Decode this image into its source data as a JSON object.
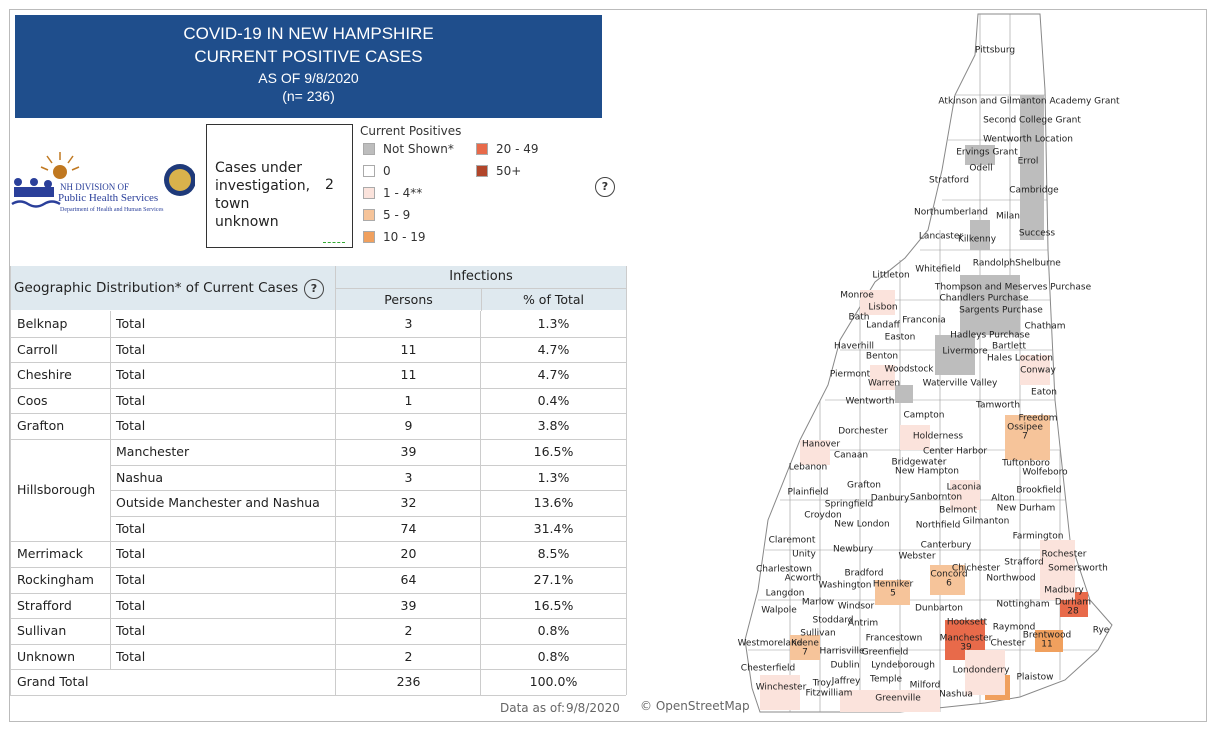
{
  "header": {
    "line1": "COVID-19 IN NEW HAMPSHIRE",
    "line2": "CURRENT POSITIVE CASES",
    "line3": "AS OF 9/8/2020",
    "line4": "(n= 236)"
  },
  "logo": {
    "line1": "NH DIVISION OF",
    "line2": "Public Health Services",
    "line3": "Department of Health and Human Services"
  },
  "unknown_box": {
    "label": "Cases under investigation, town unknown",
    "value": "2"
  },
  "help_icon": "?",
  "legend": {
    "title": "Current Positives",
    "items": [
      {
        "label": "Not Shown*",
        "color": "#bdbdbd"
      },
      {
        "label": "0",
        "color": "#ffffff"
      },
      {
        "label": "1 - 4**",
        "color": "#fbe3dc"
      },
      {
        "label": "5 - 9",
        "color": "#f6c49a"
      },
      {
        "label": "10 - 19",
        "color": "#f0a05e"
      },
      {
        "label": "20 - 49",
        "color": "#e86a4a"
      },
      {
        "label": "50+",
        "color": "#b1452a"
      }
    ]
  },
  "table": {
    "title": "Geographic Distribution* of Current Cases",
    "group_header": "Infections",
    "columns": [
      "Persons",
      "% of Total"
    ],
    "groups": [
      {
        "county": "Belknap",
        "rows": [
          [
            "Total",
            "3",
            "1.3%"
          ]
        ]
      },
      {
        "county": "Carroll",
        "rows": [
          [
            "Total",
            "11",
            "4.7%"
          ]
        ]
      },
      {
        "county": "Cheshire",
        "rows": [
          [
            "Total",
            "11",
            "4.7%"
          ]
        ]
      },
      {
        "county": "Coos",
        "rows": [
          [
            "Total",
            "1",
            "0.4%"
          ]
        ]
      },
      {
        "county": "Grafton",
        "rows": [
          [
            "Total",
            "9",
            "3.8%"
          ]
        ]
      },
      {
        "county": "Hillsborough",
        "rows": [
          [
            "Manchester",
            "39",
            "16.5%"
          ],
          [
            "Nashua",
            "3",
            "1.3%"
          ],
          [
            "Outside Manchester and Nashua",
            "32",
            "13.6%"
          ],
          [
            "Total",
            "74",
            "31.4%"
          ]
        ]
      },
      {
        "county": "Merrimack",
        "rows": [
          [
            "Total",
            "20",
            "8.5%"
          ]
        ]
      },
      {
        "county": "Rockingham",
        "rows": [
          [
            "Total",
            "64",
            "27.1%"
          ]
        ]
      },
      {
        "county": "Strafford",
        "rows": [
          [
            "Total",
            "39",
            "16.5%"
          ]
        ]
      },
      {
        "county": "Sullivan",
        "rows": [
          [
            "Total",
            "2",
            "0.8%"
          ]
        ]
      },
      {
        "county": "Unknown",
        "rows": [
          [
            "Total",
            "2",
            "0.8%"
          ]
        ]
      }
    ],
    "grand_total": {
      "label": "Grand Total",
      "persons": "236",
      "percent": "100.0%"
    }
  },
  "footer": {
    "data_as_of_label": "Data as of:",
    "data_as_of": "9/8/2020",
    "attribution": "© OpenStreetMap"
  },
  "map": {
    "towns": [
      {
        "name": "Pittsburg"
      },
      {
        "name": "Atkinson and Gilmanton Academy Grant"
      },
      {
        "name": "Second College Grant"
      },
      {
        "name": "Wentworth Location"
      },
      {
        "name": "Errol"
      },
      {
        "name": "Ervings Grant"
      },
      {
        "name": "Odell"
      },
      {
        "name": "Stratford"
      },
      {
        "name": "Cambridge"
      },
      {
        "name": "Northumberland"
      },
      {
        "name": "Milan"
      },
      {
        "name": "Success"
      },
      {
        "name": "Lancaster"
      },
      {
        "name": "Kilkenny"
      },
      {
        "name": "Whitefield"
      },
      {
        "name": "Randolph"
      },
      {
        "name": "Shelburne"
      },
      {
        "name": "Littleton"
      },
      {
        "name": "Thompson and Meserves Purchase"
      },
      {
        "name": "Chandlers Purchase"
      },
      {
        "name": "Monroe"
      },
      {
        "name": "Lisbon"
      },
      {
        "name": "Sargents Purchase"
      },
      {
        "name": "Bath"
      },
      {
        "name": "Franconia"
      },
      {
        "name": "Landaff"
      },
      {
        "name": "Chatham"
      },
      {
        "name": "Easton"
      },
      {
        "name": "Hadleys Purchase"
      },
      {
        "name": "Bartlett"
      },
      {
        "name": "Haverhill"
      },
      {
        "name": "Livermore"
      },
      {
        "name": "Hales Location"
      },
      {
        "name": "Benton"
      },
      {
        "name": "Woodstock"
      },
      {
        "name": "Conway"
      },
      {
        "name": "Piermont"
      },
      {
        "name": "Warren"
      },
      {
        "name": "Waterville Valley"
      },
      {
        "name": "Eaton"
      },
      {
        "name": "Wentworth"
      },
      {
        "name": "Tamworth"
      },
      {
        "name": "Freedom"
      },
      {
        "name": "Campton"
      },
      {
        "name": "Ossipee",
        "count": 7
      },
      {
        "name": "Dorchester"
      },
      {
        "name": "Holderness"
      },
      {
        "name": "Hanover"
      },
      {
        "name": "Center Harbor"
      },
      {
        "name": "Canaan"
      },
      {
        "name": "Bridgewater"
      },
      {
        "name": "Tuftonboro"
      },
      {
        "name": "Lebanon"
      },
      {
        "name": "New Hampton"
      },
      {
        "name": "Wolfeboro"
      },
      {
        "name": "Grafton"
      },
      {
        "name": "Laconia"
      },
      {
        "name": "Brookfield"
      },
      {
        "name": "Plainfield"
      },
      {
        "name": "Danbury"
      },
      {
        "name": "Sanbornton"
      },
      {
        "name": "Alton"
      },
      {
        "name": "Springfield"
      },
      {
        "name": "Belmont"
      },
      {
        "name": "New Durham"
      },
      {
        "name": "Croydon"
      },
      {
        "name": "Gilmanton"
      },
      {
        "name": "New London"
      },
      {
        "name": "Northfield"
      },
      {
        "name": "Farmington"
      },
      {
        "name": "Claremont"
      },
      {
        "name": "Canterbury"
      },
      {
        "name": "Newbury"
      },
      {
        "name": "Unity"
      },
      {
        "name": "Rochester"
      },
      {
        "name": "Webster"
      },
      {
        "name": "Strafford"
      },
      {
        "name": "Chichester"
      },
      {
        "name": "Charlestown"
      },
      {
        "name": "Bradford"
      },
      {
        "name": "Somersworth"
      },
      {
        "name": "Acworth"
      },
      {
        "name": "Northwood"
      },
      {
        "name": "Washington"
      },
      {
        "name": "Henniker",
        "count": 5
      },
      {
        "name": "Concord",
        "count": 6
      },
      {
        "name": "Langdon"
      },
      {
        "name": "Madbury"
      },
      {
        "name": "Durham",
        "count": 28
      },
      {
        "name": "Marlow"
      },
      {
        "name": "Nottingham"
      },
      {
        "name": "Windsor"
      },
      {
        "name": "Dunbarton"
      },
      {
        "name": "Walpole"
      },
      {
        "name": "Stoddard"
      },
      {
        "name": "Antrim"
      },
      {
        "name": "Hooksett"
      },
      {
        "name": "Raymond"
      },
      {
        "name": "Rye"
      },
      {
        "name": "Sullivan"
      },
      {
        "name": "Francestown"
      },
      {
        "name": "Manchester",
        "count": 39
      },
      {
        "name": "Brentwood",
        "count": 11
      },
      {
        "name": "Westmoreland"
      },
      {
        "name": "Keene",
        "count": 7
      },
      {
        "name": "Chester"
      },
      {
        "name": "Harrisville"
      },
      {
        "name": "Greenfield"
      },
      {
        "name": "Dublin"
      },
      {
        "name": "Lyndeborough"
      },
      {
        "name": "Londonderry"
      },
      {
        "name": "Chesterfield"
      },
      {
        "name": "Temple"
      },
      {
        "name": "Jaffrey"
      },
      {
        "name": "Troy"
      },
      {
        "name": "Plaistow"
      },
      {
        "name": "Winchester"
      },
      {
        "name": "Milford"
      },
      {
        "name": "Fitzwilliam"
      },
      {
        "name": "Nashua"
      },
      {
        "name": "Greenville"
      }
    ]
  }
}
